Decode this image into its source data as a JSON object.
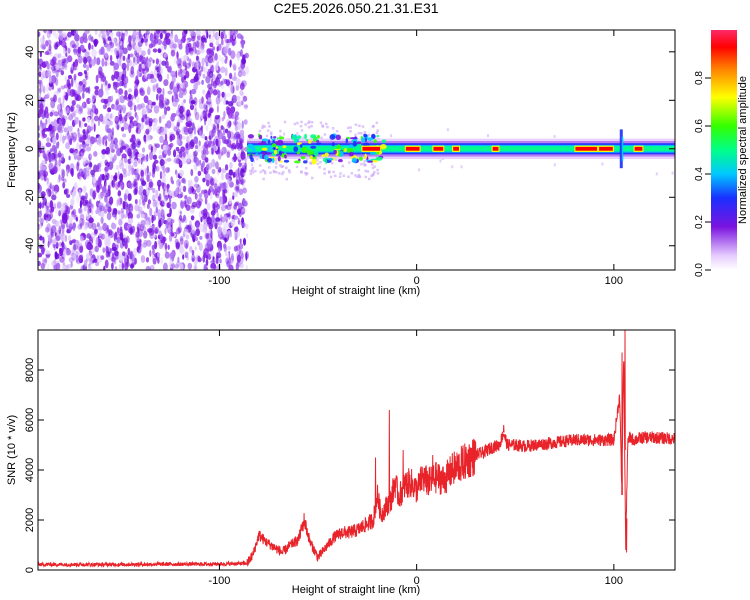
{
  "title": "C2E5.2026.050.21.31.E31",
  "colors": {
    "line": "#e8232a",
    "noise_purple": "#7a14e0",
    "axis": "#000000"
  },
  "chart_data": [
    {
      "type": "heatmap",
      "xlabel": "Height of straight line (km)",
      "ylabel": "Frequency (Hz)",
      "xlim": [
        -192,
        131
      ],
      "ylim": [
        -50,
        49
      ],
      "xticks": [
        -100,
        0,
        100
      ],
      "yticks": [
        -40,
        -20,
        0,
        20,
        40
      ],
      "colorbar": {
        "label": "Normalized spectral amplitude",
        "range": [
          0,
          1
        ],
        "ticks": [
          0.0,
          0.2,
          0.4,
          0.6,
          0.8
        ]
      },
      "regions": [
        {
          "name": "broadband noise",
          "x_range": [
            -192,
            -86
          ],
          "freq_range": [
            -50,
            49
          ],
          "amplitude": 0.15
        },
        {
          "name": "scattered speckle",
          "x_range": [
            -86,
            -20
          ],
          "freq_range": [
            -12,
            12
          ],
          "amplitude": 0.1
        },
        {
          "name": "strong signal band",
          "x_range": [
            -86,
            131
          ],
          "center_freq": 0,
          "half_width_hz": 4,
          "amplitude": 0.9
        }
      ]
    },
    {
      "type": "line",
      "xlabel": "Height of straight line (km)",
      "ylabel": "SNR (10 * v/v)",
      "xlim": [
        -192,
        131
      ],
      "ylim": [
        0,
        9600
      ],
      "xticks": [
        -100,
        0,
        100
      ],
      "yticks": [
        0,
        2000,
        4000,
        6000,
        8000
      ],
      "series": [
        {
          "name": "SNR",
          "x": [
            -192,
            -160,
            -130,
            -100,
            -86,
            -83,
            -80,
            -76,
            -72,
            -68,
            -64,
            -60,
            -57,
            -54,
            -50,
            -46,
            -42,
            -38,
            -34,
            -30,
            -26,
            -22,
            -20,
            -18,
            -15,
            -13,
            -11,
            -9,
            -6,
            -3,
            0,
            3,
            6,
            10,
            14,
            18,
            22,
            26,
            30,
            34,
            38,
            42,
            44,
            46,
            50,
            55,
            60,
            70,
            80,
            90,
            100,
            103,
            104,
            105,
            106,
            107,
            108,
            110,
            115,
            120,
            131
          ],
          "values": [
            220,
            220,
            230,
            240,
            260,
            600,
            1400,
            1100,
            900,
            700,
            1000,
            1200,
            2000,
            1100,
            500,
            900,
            1300,
            1500,
            1500,
            1600,
            1800,
            2000,
            3000,
            2200,
            2600,
            2800,
            3500,
            2900,
            3400,
            3500,
            3200,
            3700,
            3500,
            3700,
            3600,
            4000,
            4200,
            4400,
            4600,
            4700,
            4900,
            5000,
            5500,
            5000,
            5000,
            4950,
            5000,
            5100,
            5200,
            5200,
            5200,
            7000,
            3000,
            8800,
            800,
            5000,
            5300,
            5200,
            5300,
            5300,
            5250
          ]
        }
      ]
    }
  ]
}
